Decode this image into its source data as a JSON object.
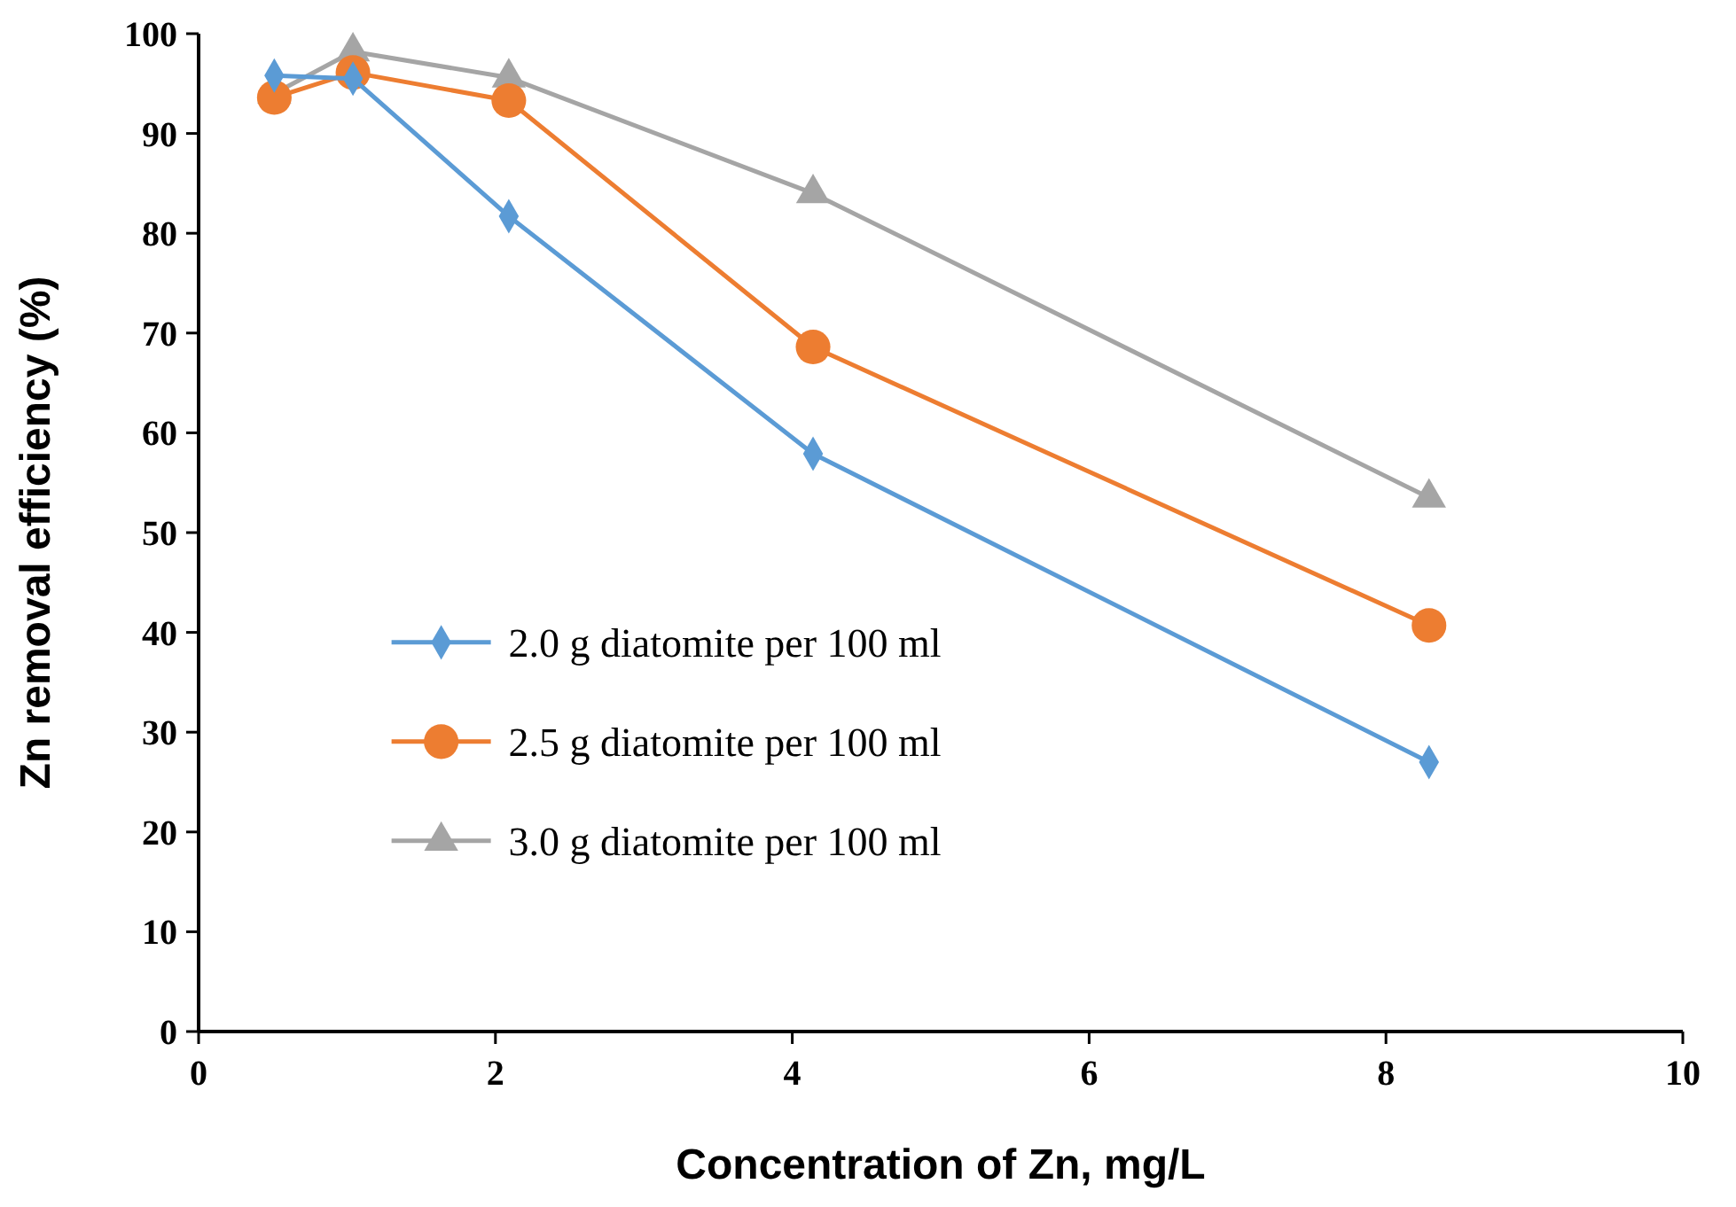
{
  "chart_data": {
    "type": "line",
    "xlabel": "Concentration of Zn, mg/L",
    "ylabel": "Zn removal efficiency (%)",
    "x": [
      0.51,
      1.04,
      2.09,
      4.14,
      8.29
    ],
    "series": [
      {
        "name": "2.0 g diatomite per 100 ml",
        "color": "#5b9bd5",
        "marker": "diamond",
        "values": [
          95.8,
          95.5,
          81.7,
          57.9,
          27.0
        ]
      },
      {
        "name": "2.5 g diatomite per 100 ml",
        "color": "#ed7d31",
        "marker": "circle",
        "values": [
          93.6,
          96.1,
          93.3,
          68.6,
          40.7
        ]
      },
      {
        "name": "3.0 g diatomite per 100 ml",
        "color": "#a5a5a5",
        "marker": "triangle",
        "values": [
          94.0,
          98.2,
          95.6,
          84.0,
          53.5
        ]
      }
    ],
    "xlim": [
      0,
      10
    ],
    "xticks": [
      0,
      2,
      4,
      6,
      8,
      10
    ],
    "ylim": [
      0,
      100
    ],
    "yticks": [
      0,
      10,
      20,
      30,
      40,
      50,
      60,
      70,
      80,
      90,
      100
    ],
    "grid": false,
    "legend": "left",
    "line_style": "solid"
  }
}
